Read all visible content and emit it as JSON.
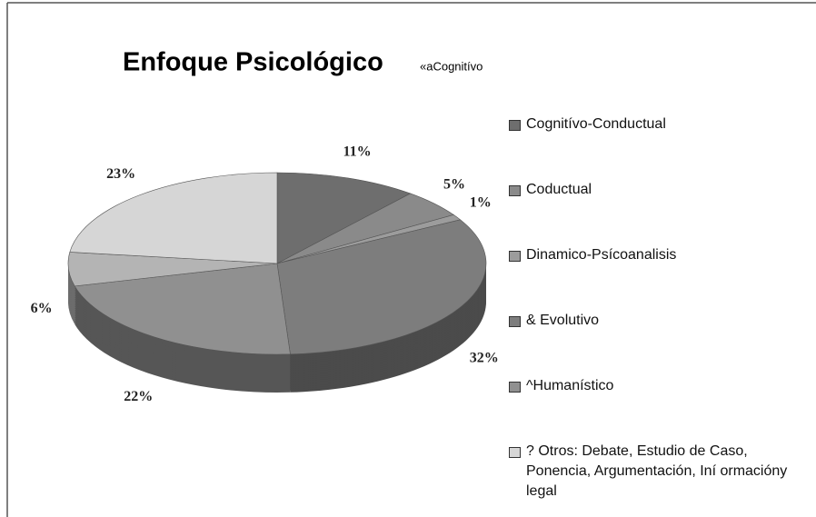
{
  "chart_data": {
    "type": "pie",
    "title": "Enfoque Psicológico",
    "subtitle": "«aCognitívo",
    "categories": [
      "Cognitívo-Conductual",
      "Coductual",
      "Dinamico-Psícoanalisis",
      "& Evolutivo",
      "^Humanístico",
      null,
      "? Otros: Debate, Estudio de Caso, Ponencia, Argumentación, Iní ormacióny legal"
    ],
    "values": [
      11,
      5,
      1,
      32,
      22,
      6,
      23
    ],
    "value_labels": [
      "11%",
      "5%",
      "1%",
      "32%",
      "22%",
      "6%",
      "23%"
    ],
    "colors": [
      "#6e6e6e",
      "#8a8a8a",
      "#9c9c9c",
      "#7d7d7d",
      "#909090",
      "#b4b4b4",
      "#d6d6d6"
    ]
  }
}
